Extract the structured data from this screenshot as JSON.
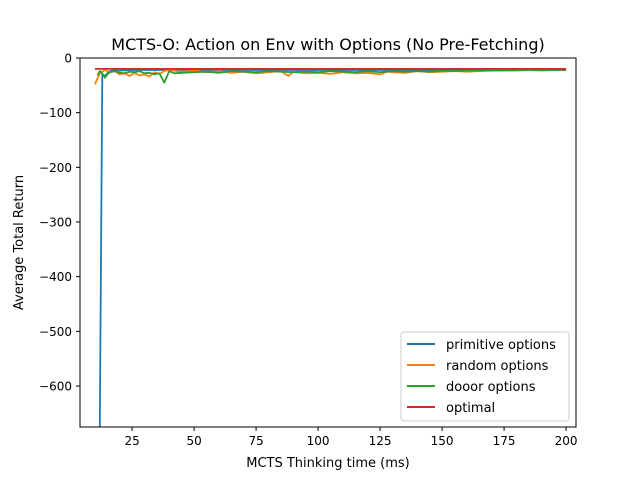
{
  "chart_data": {
    "type": "line",
    "title": "MCTS-O: Action on Env with Options (No Pre-Fetching)",
    "xlabel": "MCTS Thinking time (ms)",
    "ylabel": "Average Total Return",
    "xlim": [
      4,
      204
    ],
    "ylim": [
      -675,
      0
    ],
    "xticks": [
      25,
      50,
      75,
      100,
      125,
      150,
      175,
      200
    ],
    "yticks": [
      0,
      -100,
      -200,
      -300,
      -400,
      -500,
      -600
    ],
    "xtick_labels": [
      "25",
      "50",
      "75",
      "100",
      "125",
      "150",
      "175",
      "200"
    ],
    "ytick_labels": [
      "0",
      "−100",
      "−200",
      "−300",
      "−400",
      "−500",
      "−600"
    ],
    "grid": false,
    "legend_position": "lower-right",
    "series": [
      {
        "name": "primitive options",
        "color": "#1f77b4",
        "x": [
          12,
          13,
          14,
          15,
          16,
          18,
          20,
          25,
          30,
          40,
          50,
          60,
          70,
          80,
          90,
          100,
          110,
          120,
          130,
          140,
          150,
          160,
          170,
          180,
          190,
          200
        ],
        "y": [
          -675,
          -30,
          -33,
          -28,
          -24,
          -22,
          -23,
          -22,
          -22,
          -22,
          -22,
          -22,
          -22,
          -22,
          -22,
          -22,
          -22,
          -22,
          -22,
          -22,
          -22,
          -22,
          -22,
          -22,
          -22,
          -22
        ]
      },
      {
        "name": "random options",
        "color": "#ff7f0e",
        "x": [
          10,
          12,
          14,
          16,
          18,
          20,
          22,
          24,
          26,
          28,
          30,
          32,
          34,
          36,
          38,
          40,
          45,
          50,
          55,
          60,
          65,
          70,
          75,
          80,
          85,
          88,
          90,
          95,
          100,
          105,
          110,
          115,
          120,
          125,
          128,
          130,
          135,
          140,
          145,
          150,
          155,
          160,
          165,
          170,
          175,
          180,
          185,
          190,
          195,
          200
        ],
        "y": [
          -48,
          -28,
          -22,
          -26,
          -24,
          -30,
          -28,
          -33,
          -27,
          -32,
          -30,
          -34,
          -26,
          -29,
          -24,
          -22,
          -25,
          -23,
          -26,
          -24,
          -27,
          -25,
          -28,
          -26,
          -24,
          -33,
          -25,
          -28,
          -27,
          -29,
          -26,
          -28,
          -27,
          -30,
          -25,
          -26,
          -27,
          -24,
          -26,
          -25,
          -24,
          -25,
          -24,
          -23,
          -23,
          -23,
          -22,
          -23,
          -22,
          -22
        ]
      },
      {
        "name": "dooor options",
        "color": "#2ca02c",
        "x": [
          11,
          12,
          13,
          14,
          15,
          16,
          18,
          20,
          22,
          24,
          26,
          28,
          30,
          32,
          34,
          36,
          38,
          40,
          42,
          45,
          50,
          55,
          60,
          65,
          70,
          75,
          80,
          85,
          90,
          95,
          100,
          105,
          110,
          115,
          120,
          125,
          130,
          135,
          140,
          145,
          150,
          155,
          160,
          165,
          170,
          180,
          190,
          200
        ],
        "y": [
          -32,
          -24,
          -28,
          -36,
          -30,
          -26,
          -24,
          -27,
          -28,
          -25,
          -26,
          -24,
          -28,
          -27,
          -30,
          -28,
          -45,
          -24,
          -28,
          -27,
          -26,
          -25,
          -27,
          -24,
          -25,
          -26,
          -24,
          -25,
          -26,
          -25,
          -26,
          -24,
          -25,
          -26,
          -24,
          -26,
          -24,
          -25,
          -24,
          -25,
          -23,
          -24,
          -23,
          -23,
          -23,
          -22,
          -22,
          -22
        ]
      },
      {
        "name": "optimal",
        "color": "#d62728",
        "x": [
          10,
          200
        ],
        "y": [
          -20,
          -20
        ]
      }
    ]
  }
}
